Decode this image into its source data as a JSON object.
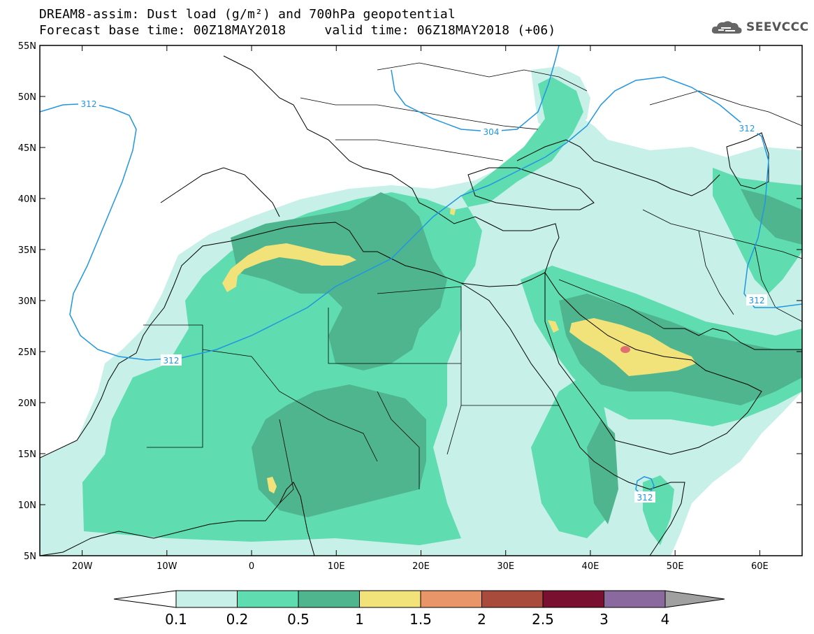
{
  "header": {
    "title_line1": "DREAM8-assim: Dust load (g/m²) and 700hPa geopotential",
    "title_line2": "Forecast base time: 00Z18MAY2018     valid time: 06Z18MAY2018 (+06)"
  },
  "logo": {
    "text": "SEEVCCC",
    "icon": "cloud-logo-icon"
  },
  "map": {
    "lat_labels": [
      "55N",
      "50N",
      "45N",
      "40N",
      "35N",
      "30N",
      "25N",
      "20N",
      "15N",
      "10N",
      "5N"
    ],
    "lon_labels": [
      "20W",
      "10W",
      "0",
      "10E",
      "20E",
      "30E",
      "40E",
      "50E",
      "60E"
    ],
    "contour_labels": [
      "312",
      "304",
      "312",
      "312",
      "312"
    ]
  },
  "colorbar": {
    "tick_labels": [
      "0.1",
      "0.2",
      "0.5",
      "1",
      "1.5",
      "2",
      "2.5",
      "3",
      "4"
    ],
    "colors": [
      "#c6f0e8",
      "#5fddb0",
      "#4fb58e",
      "#f2e27a",
      "#e8956a",
      "#a84a3c",
      "#7a1030",
      "#8a6a9e"
    ],
    "under_color": "#ffffff",
    "over_color": "#a0a0a0"
  },
  "colors": {
    "contour": "#2196e0",
    "lvl1": "#c6f0e8",
    "lvl2": "#5fddb0",
    "lvl3": "#4fb58e",
    "lvl4": "#f2e27a",
    "lvl5": "#e07070"
  }
}
